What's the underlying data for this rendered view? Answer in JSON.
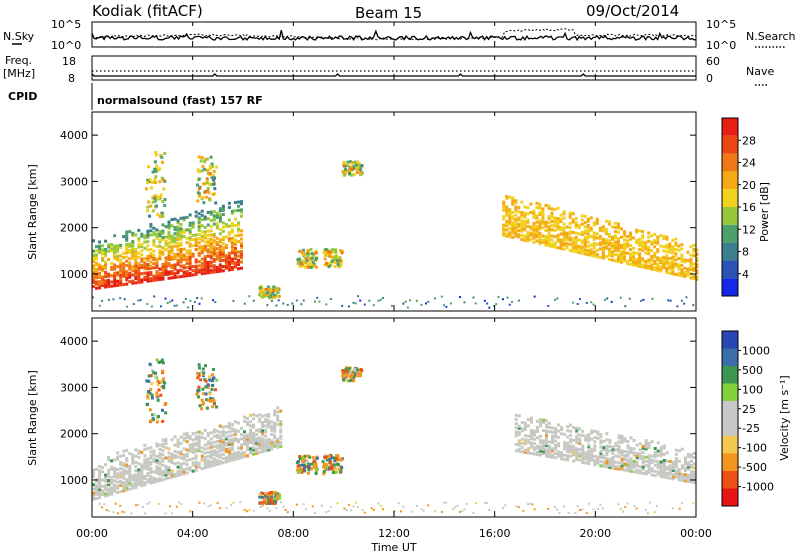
{
  "header": {
    "station": "Kodiak (fitACF)",
    "beam": "Beam 15",
    "date": "09/Oct/2014"
  },
  "panels": {
    "nsky_label": "N.Sky",
    "nsearch_label": "N.Search",
    "freq_label_line1": "Freq.",
    "freq_label_line2": "[MHz]",
    "nave_label": "Nave",
    "cpid_label": "CPID",
    "cpid_text": "normalsound (fast) 157 RF",
    "noise_left_ticks": [
      "10^5",
      "10^0"
    ],
    "noise_right_ticks": [
      "10^5",
      "10^0"
    ],
    "freq_ticks": [
      "18",
      "8"
    ],
    "nave_ticks": [
      "60",
      "0"
    ]
  },
  "colors": {
    "power": [
      "#1428e6",
      "#2a54b4",
      "#3c7e8c",
      "#4ca06c",
      "#96c83c",
      "#f0d21e",
      "#f5aa14",
      "#f07814",
      "#ec4614",
      "#e61e14"
    ],
    "velocity": [
      "#e61414",
      "#f05014",
      "#f0961e",
      "#f5c850",
      "#c8c8c8",
      "#c8c8c8",
      "#82d23c",
      "#3c9650",
      "#3c6eaa",
      "#2846b4"
    ],
    "velocity_ground": "#c8c8c3"
  },
  "chart_data": [
    {
      "type": "heatmap",
      "title": "",
      "xlabel": "Time UT",
      "ylabel": "Slant Range [km]",
      "x_ticks": [
        "00:00",
        "04:00",
        "08:00",
        "12:00",
        "16:00",
        "20:00",
        "00:00"
      ],
      "xlim": [
        0,
        24
      ],
      "ylim": [
        200,
        4500
      ],
      "y_ticks": [
        1000,
        2000,
        3000,
        4000
      ],
      "colorbar": {
        "label": "Power [dB]",
        "ticks": [
          "4",
          "8",
          "12",
          "16",
          "20",
          "24",
          "28"
        ],
        "range": [
          0,
          30
        ]
      },
      "regions": [
        {
          "name": "evening-band",
          "t": [
            0,
            6.0
          ],
          "r_lo": [
            650,
            1100
          ],
          "r_hi": [
            1700,
            2600
          ],
          "v": [
            28,
            16
          ]
        },
        {
          "name": "dawn-band",
          "t": [
            16.3,
            24
          ],
          "r_lo": [
            1800,
            850
          ],
          "r_hi": [
            2700,
            1600
          ],
          "v": [
            18,
            26
          ]
        }
      ]
    },
    {
      "type": "heatmap",
      "title": "",
      "xlabel": "Time UT",
      "ylabel": "Slant Range [km]",
      "x_ticks": [
        "00:00",
        "04:00",
        "08:00",
        "12:00",
        "16:00",
        "20:00",
        "00:00"
      ],
      "xlim": [
        0,
        24
      ],
      "ylim": [
        200,
        4500
      ],
      "y_ticks": [
        1000,
        2000,
        3000,
        4000
      ],
      "colorbar": {
        "label": "Velocity [m s⁻¹]",
        "ticks": [
          "1000",
          "500",
          "100",
          "25",
          "-25",
          "-100",
          "-500",
          "-1000"
        ],
        "range": [
          -1000,
          1000
        ]
      },
      "regions": [
        {
          "name": "ground-scatter-evening",
          "t": [
            0,
            7.5
          ],
          "r_lo": [
            550,
            1700
          ],
          "r_hi": [
            1400,
            2600
          ],
          "v": [
            0,
            0
          ]
        },
        {
          "name": "ground-scatter-dawn",
          "t": [
            16.8,
            24
          ],
          "r_lo": [
            1600,
            900
          ],
          "r_hi": [
            2400,
            1600
          ],
          "v": [
            0,
            0
          ]
        }
      ]
    }
  ]
}
